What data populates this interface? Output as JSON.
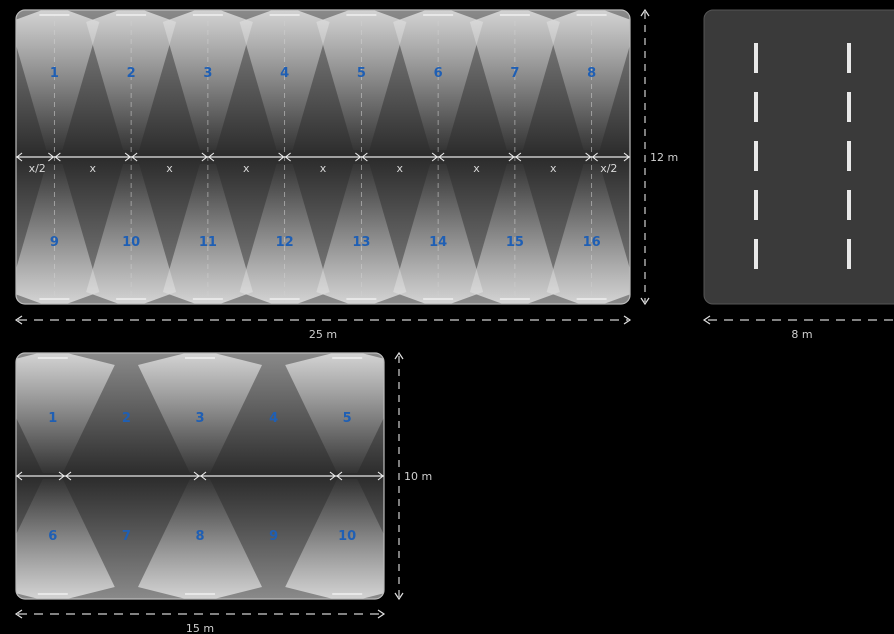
{
  "diagram_a": {
    "luminaires_top": [
      "1",
      "2",
      "3",
      "4",
      "5",
      "6",
      "7",
      "8"
    ],
    "luminaires_bottom": [
      "9",
      "10",
      "11",
      "12",
      "13",
      "14",
      "15",
      "16"
    ],
    "spacing_label": "x",
    "half_spacing_label": "x/2",
    "width_label": "25 m",
    "height_label": "12 m"
  },
  "diagram_b": {
    "luminaires_top": [
      "1",
      "2",
      "3",
      "4",
      "5"
    ],
    "luminaires_bottom": [
      "6",
      "7",
      "8",
      "9",
      "10"
    ],
    "width_label": "15 m",
    "height_label": "10 m"
  },
  "diagram_c": {
    "width_label": "8 m"
  }
}
